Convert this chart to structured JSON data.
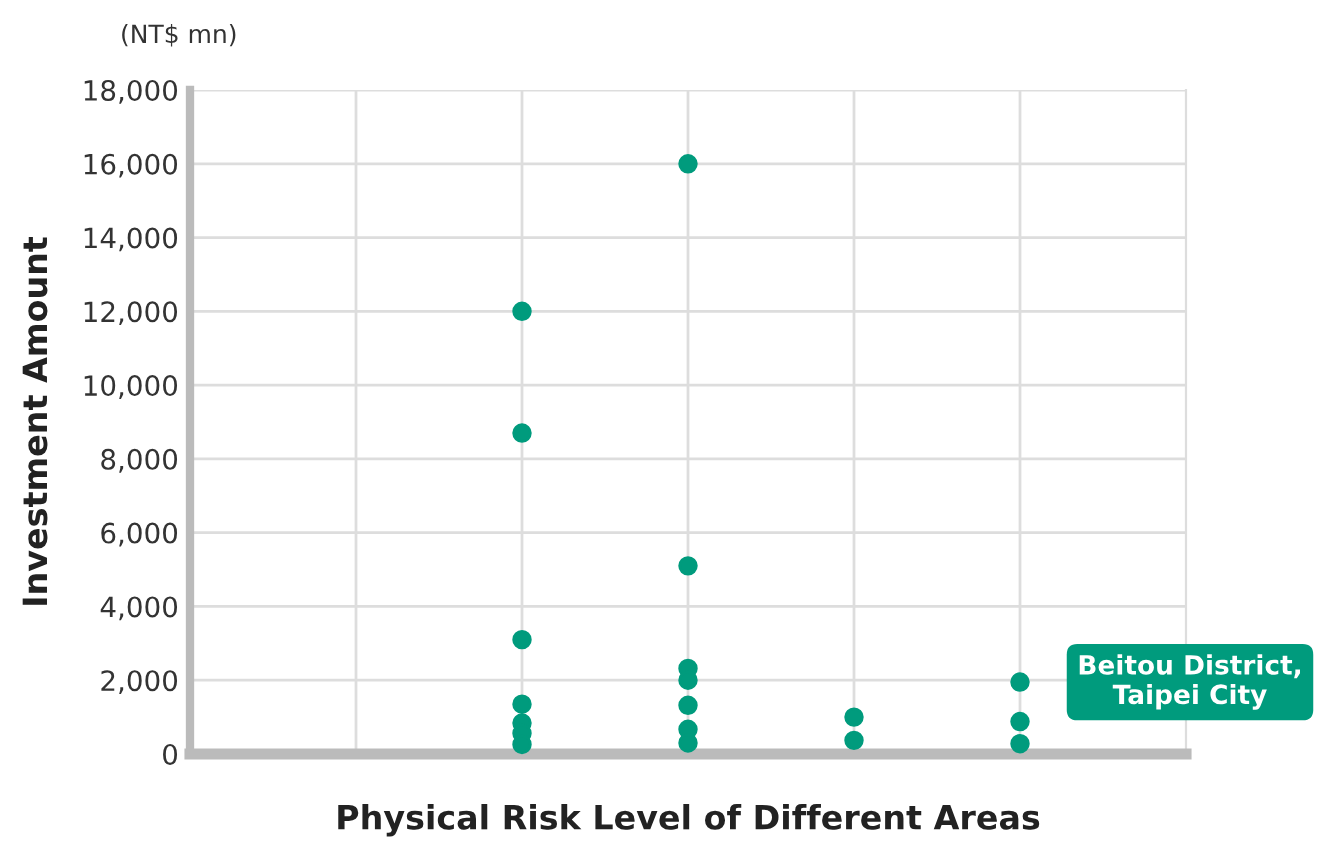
{
  "chart_data": {
    "type": "scatter",
    "xlabel": "Physical Risk Level of Different Areas",
    "ylabel": "Investment Amount",
    "annotations": [
      "(NT$ mn)",
      "Beitou District,\nTaipei City"
    ],
    "categories": [
      null,
      null,
      null,
      null,
      null
    ],
    "series": [
      {
        "color": "#009b7d",
        "values": [
          null,
          12000,
          16000,
          1000,
          1950
        ]
      },
      {
        "color": "#009b7d",
        "values": [
          null,
          8700,
          5100,
          370,
          880
        ]
      },
      {
        "color": "#009b7d",
        "values": [
          null,
          3100,
          2320,
          null,
          280
        ]
      },
      {
        "color": "#009b7d",
        "values": [
          null,
          1350,
          2000,
          null,
          null
        ]
      },
      {
        "color": "#009b7d",
        "values": [
          null,
          840,
          1320,
          null,
          null
        ]
      },
      {
        "color": "#009b7d",
        "values": [
          null,
          560,
          670,
          null,
          null
        ]
      },
      {
        "color": "#009b7d",
        "values": [
          null,
          260,
          300,
          null,
          null
        ]
      }
    ],
    "ylim": [
      0,
      18000
    ],
    "yticks": [
      0,
      {
        "value": 2000,
        "label": "2,000"
      },
      {
        "value": 4000,
        "label": "4,000"
      },
      {
        "value": 6000,
        "label": "6,000"
      },
      {
        "value": 8000,
        "label": "8,000"
      },
      {
        "value": 10000,
        "label": "10,000"
      },
      {
        "value": 12000,
        "label": "12,000"
      },
      {
        "value": 14000,
        "label": "14,000"
      },
      {
        "value": 16000,
        "label": "16,000"
      },
      {
        "value": 18000,
        "label": "18,000"
      }
    ],
    "tick_labels": "y",
    "grid": true,
    "marker": "circle"
  }
}
